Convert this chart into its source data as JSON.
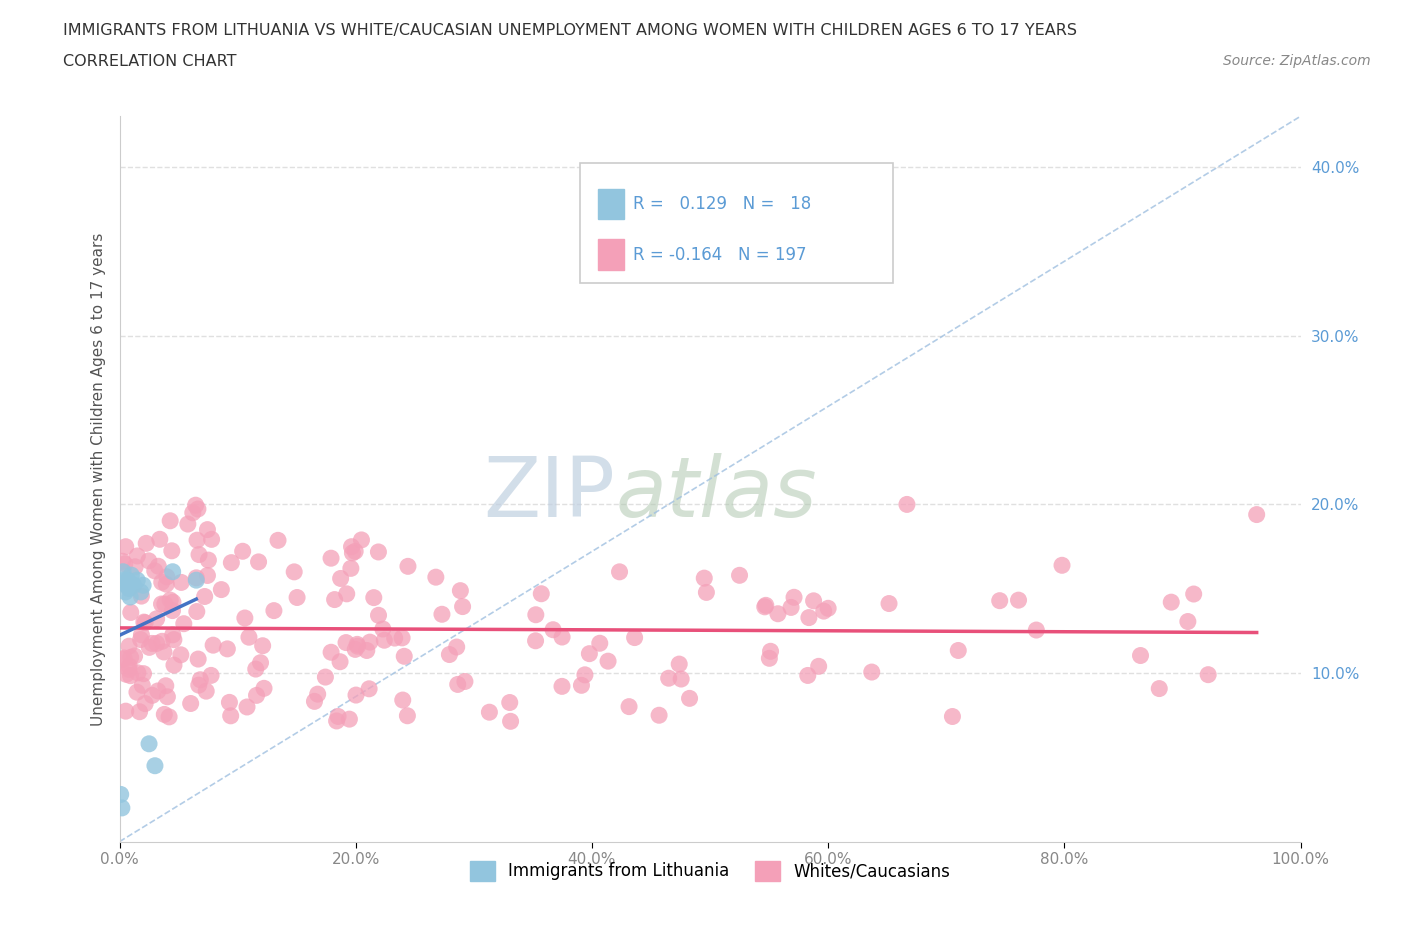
{
  "title_line1": "IMMIGRANTS FROM LITHUANIA VS WHITE/CAUCASIAN UNEMPLOYMENT AMONG WOMEN WITH CHILDREN AGES 6 TO 17 YEARS",
  "title_line2": "CORRELATION CHART",
  "source_text": "Source: ZipAtlas.com",
  "ylabel": "Unemployment Among Women with Children Ages 6 to 17 years",
  "r_lithuania": 0.129,
  "n_lithuania": 18,
  "r_white": -0.164,
  "n_white": 197,
  "xlim": [
    0.0,
    1.0
  ],
  "ylim": [
    0.0,
    0.43
  ],
  "xtick_vals": [
    0.0,
    0.2,
    0.4,
    0.6,
    0.8,
    1.0
  ],
  "ytick_vals": [
    0.1,
    0.2,
    0.3,
    0.4
  ],
  "color_lithuania": "#92C5DE",
  "color_white": "#F4A0B8",
  "trendline_lithuania_color": "#4472C4",
  "trendline_white_color": "#E8507A",
  "ref_line_color": "#A0C0E0",
  "watermark_zip_color": "#C8D8E8",
  "watermark_atlas_color": "#C8D0C8",
  "legend_box_color_lithuania": "#92C5DE",
  "legend_box_color_white": "#F4A0B8",
  "background_color": "#FFFFFF",
  "grid_color": "#E0E0E0",
  "ytick_color": "#5B9BD5",
  "xtick_color": "#888888",
  "title_color": "#333333",
  "source_color": "#888888",
  "ylabel_color": "#555555"
}
